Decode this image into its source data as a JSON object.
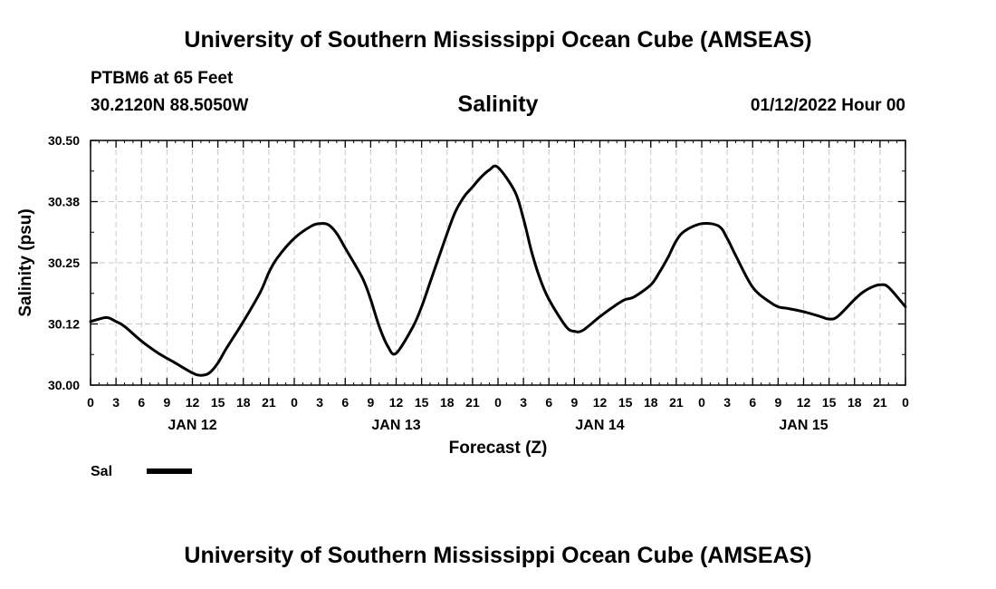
{
  "header": {
    "title": "University of Southern Mississippi Ocean Cube (AMSEAS)",
    "station": "PTBM6 at 65 Feet",
    "coords": "30.2120N  88.5050W",
    "subtitle": "Salinity",
    "date": "01/12/2022 Hour 00"
  },
  "footer": {
    "title": "University of Southern Mississippi Ocean Cube (AMSEAS)"
  },
  "chart_data": {
    "type": "line",
    "title": "Salinity",
    "xlabel": "Forecast (Z)",
    "ylabel": "Salinity (psu)",
    "xlim": [
      0,
      96
    ],
    "ylim": [
      30.0,
      30.5
    ],
    "grid": true,
    "legend": {
      "position": "bottom-left",
      "entries": [
        "Sal"
      ]
    },
    "x_tick_values": [
      0,
      3,
      6,
      9,
      12,
      15,
      18,
      21,
      24,
      27,
      30,
      33,
      36,
      39,
      42,
      45,
      48,
      51,
      54,
      57,
      60,
      63,
      66,
      69,
      72,
      75,
      78,
      81,
      84,
      87,
      90,
      93,
      96
    ],
    "x_tick_labels": [
      "0",
      "3",
      "6",
      "9",
      "12",
      "15",
      "18",
      "21",
      "0",
      "3",
      "6",
      "9",
      "12",
      "15",
      "18",
      "21",
      "0",
      "3",
      "6",
      "9",
      "12",
      "15",
      "18",
      "21",
      "0",
      "3",
      "6",
      "9",
      "12",
      "15",
      "18",
      "21",
      "0"
    ],
    "y_ticks": [
      30.0,
      30.125,
      30.25,
      30.375,
      30.5
    ],
    "y_tick_labels": [
      "30.00",
      "30.12",
      "30.25",
      "30.38",
      "30.50"
    ],
    "day_labels": [
      {
        "x": 12,
        "label": "JAN 12"
      },
      {
        "x": 36,
        "label": "JAN 13"
      },
      {
        "x": 60,
        "label": "JAN 14"
      },
      {
        "x": 84,
        "label": "JAN 15"
      }
    ],
    "series": [
      {
        "name": "Sal",
        "x": [
          0,
          1,
          2,
          3,
          4,
          6,
          8,
          10,
          12,
          13,
          14,
          15,
          16,
          18,
          20,
          21,
          22,
          24,
          26,
          27,
          28,
          29,
          30,
          32,
          33,
          34,
          35,
          36,
          38,
          39,
          40,
          42,
          43,
          44,
          45,
          46,
          47,
          48,
          50,
          51,
          52,
          53,
          54,
          56,
          57,
          58,
          60,
          62,
          63,
          64,
          66,
          67,
          68,
          69,
          70,
          72,
          74,
          75,
          76,
          78,
          80,
          81,
          82,
          84,
          86,
          87,
          88,
          90,
          91,
          92,
          93,
          94,
          96
        ],
        "y": [
          30.13,
          30.135,
          30.138,
          30.13,
          30.12,
          30.09,
          30.065,
          30.045,
          30.025,
          30.02,
          30.025,
          30.045,
          30.075,
          30.13,
          30.19,
          30.23,
          30.26,
          30.3,
          30.325,
          30.33,
          30.328,
          30.31,
          30.28,
          30.22,
          30.175,
          30.12,
          30.08,
          30.065,
          30.12,
          30.16,
          30.21,
          30.31,
          30.355,
          30.385,
          30.405,
          30.425,
          30.44,
          30.445,
          30.395,
          30.34,
          30.27,
          30.215,
          30.175,
          30.12,
          30.11,
          30.112,
          30.14,
          30.165,
          30.175,
          30.18,
          30.205,
          30.23,
          30.26,
          30.295,
          30.315,
          30.33,
          30.325,
          30.3,
          30.265,
          30.2,
          30.17,
          30.16,
          30.157,
          30.15,
          30.14,
          30.135,
          30.14,
          30.175,
          30.19,
          30.2,
          30.205,
          30.2,
          30.16
        ]
      }
    ]
  }
}
